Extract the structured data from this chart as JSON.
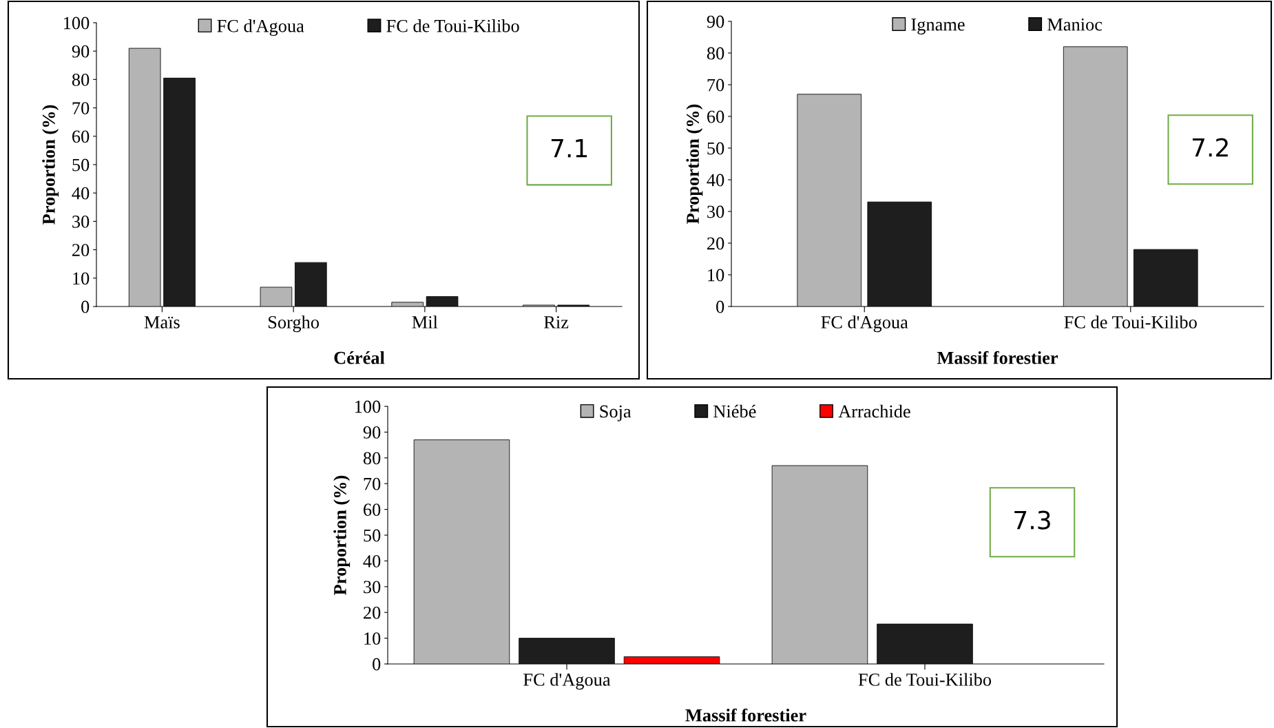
{
  "chart_data": [
    {
      "type": "bar",
      "categories": [
        "Maïs",
        "Sorgho",
        "Mil",
        "Riz"
      ],
      "xlabel": "Céréal",
      "ylabel": "Proportion (%)",
      "ylim": [
        0,
        100
      ],
      "yticks": [
        0,
        10,
        20,
        30,
        40,
        50,
        60,
        70,
        80,
        90,
        100
      ],
      "grid": false,
      "legend": "top",
      "annotations": [
        "7.1"
      ],
      "series": [
        {
          "name": "FC d'Agoua",
          "color": "#b4b4b4",
          "values": [
            91,
            6.8,
            1.5,
            0.5
          ]
        },
        {
          "name": "FC de Toui-Kilibo",
          "color": "#1e1e1e",
          "values": [
            80.5,
            15.5,
            3.5,
            0.5
          ]
        }
      ]
    },
    {
      "type": "bar",
      "categories": [
        "FC d'Agoua",
        "FC de Toui-Kilibo"
      ],
      "xlabel": "Massif forestier",
      "ylabel": "Proportion (%)",
      "ylim": [
        0,
        90
      ],
      "yticks": [
        0,
        10,
        20,
        30,
        40,
        50,
        60,
        70,
        80,
        90
      ],
      "grid": false,
      "legend": "top",
      "annotations": [
        "7.2"
      ],
      "series": [
        {
          "name": "Igname",
          "color": "#b4b4b4",
          "values": [
            67,
            82
          ]
        },
        {
          "name": "Manioc",
          "color": "#1e1e1e",
          "values": [
            33,
            18
          ]
        }
      ]
    },
    {
      "type": "bar",
      "categories": [
        "FC d'Agoua",
        "FC de Toui-Kilibo"
      ],
      "xlabel": "Massif forestier",
      "ylabel": "Proportion (%)",
      "ylim": [
        0,
        100
      ],
      "yticks": [
        0,
        10,
        20,
        30,
        40,
        50,
        60,
        70,
        80,
        90,
        100
      ],
      "grid": false,
      "legend": "top",
      "annotations": [
        "7.3"
      ],
      "series": [
        {
          "name": "Soja",
          "color": "#b4b4b4",
          "values": [
            87,
            77
          ]
        },
        {
          "name": "Niébé",
          "color": "#1e1e1e",
          "values": [
            10,
            15.5
          ]
        },
        {
          "name": "Arrachide",
          "color": "#ff0000",
          "values": [
            2.8,
            null
          ]
        }
      ]
    }
  ]
}
